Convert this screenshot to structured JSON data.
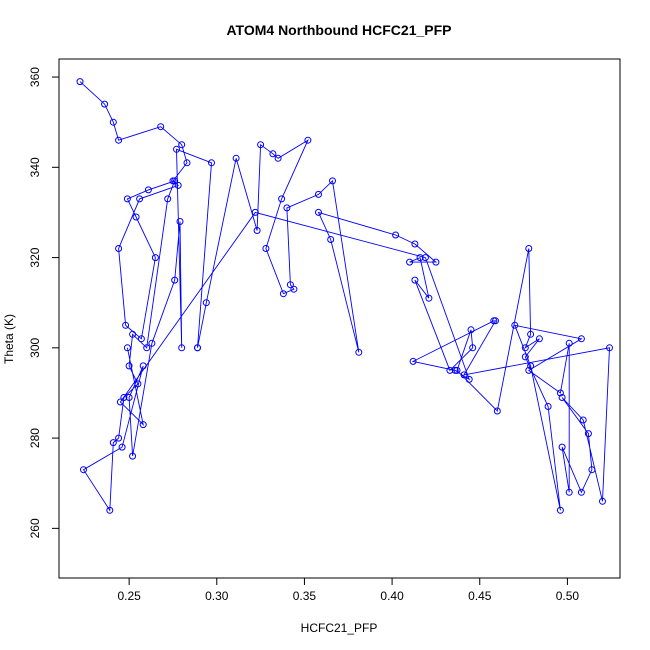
{
  "chart_data": {
    "type": "line",
    "title": "ATOM4 Northbound HCFC21_PFP",
    "xlabel": "HCFC21_PFP",
    "ylabel": "Theta (K)",
    "xlim": [
      0.21,
      0.53
    ],
    "ylim": [
      249,
      364
    ],
    "xticks": [
      0.25,
      0.3,
      0.35,
      0.4,
      0.45,
      0.5
    ],
    "xtick_labels": [
      "0.25",
      "0.30",
      "0.35",
      "0.40",
      "0.45",
      "0.50"
    ],
    "yticks": [
      260,
      280,
      300,
      320,
      340,
      360
    ],
    "ytick_labels": [
      "260",
      "280",
      "300",
      "320",
      "340",
      "360"
    ],
    "grid": false,
    "color": "#0000ff",
    "series": [
      {
        "x": [
          0.222,
          0.236,
          0.241,
          0.244,
          0.268,
          0.28,
          0.283,
          0.275,
          0.278,
          0.256,
          0.244,
          0.248,
          0.257,
          0.265,
          0.254,
          0.249,
          0.261,
          0.276,
          0.272,
          0.26,
          0.252,
          0.25,
          0.255,
          0.247,
          0.244,
          0.241,
          0.239,
          0.224,
          0.246,
          0.258,
          0.25,
          0.252,
          0.263,
          0.276,
          0.279,
          0.28,
          0.277,
          0.297,
          0.289,
          0.289,
          0.294,
          0.311,
          0.323,
          0.325,
          0.332,
          0.335,
          0.352,
          0.337,
          0.328,
          0.338,
          0.344,
          0.342,
          0.34,
          0.358,
          0.366,
          0.381,
          0.365,
          0.358,
          0.402,
          0.413,
          0.425,
          0.41,
          0.416,
          0.421,
          0.413,
          0.433,
          0.446,
          0.445,
          0.437,
          0.46,
          0.478,
          0.479,
          0.476,
          0.484,
          0.476,
          0.489,
          0.496,
          0.479,
          0.47,
          0.508,
          0.478,
          0.496,
          0.501,
          0.501,
          0.497,
          0.508,
          0.514,
          0.512,
          0.497,
          0.509,
          0.52,
          0.524,
          0.441,
          0.459,
          0.458,
          0.412,
          0.436,
          0.444,
          0.419,
          0.322,
          0.245,
          0.258,
          0.249
        ],
        "y": [
          359,
          354,
          350,
          346,
          349,
          345,
          341,
          337,
          336,
          333,
          322,
          305,
          302,
          320,
          329,
          333,
          335,
          337,
          333,
          300,
          303,
          296,
          292,
          289,
          280,
          279,
          264,
          273,
          278,
          296,
          289,
          276,
          301,
          315,
          328,
          300,
          344,
          341,
          300,
          300,
          310,
          342,
          326,
          345,
          343,
          342,
          346,
          333,
          322,
          312,
          313,
          314,
          331,
          334,
          337,
          299,
          324,
          330,
          325,
          323,
          319,
          319,
          320,
          311,
          315,
          295,
          300,
          304,
          295,
          286,
          322,
          303,
          300,
          302,
          298,
          287,
          264,
          296,
          305,
          302,
          295,
          290,
          301,
          268,
          278,
          268,
          273,
          281,
          289,
          284,
          266,
          300,
          294,
          306,
          306,
          297,
          295,
          293,
          320,
          330,
          288,
          283,
          300
        ]
      }
    ]
  }
}
